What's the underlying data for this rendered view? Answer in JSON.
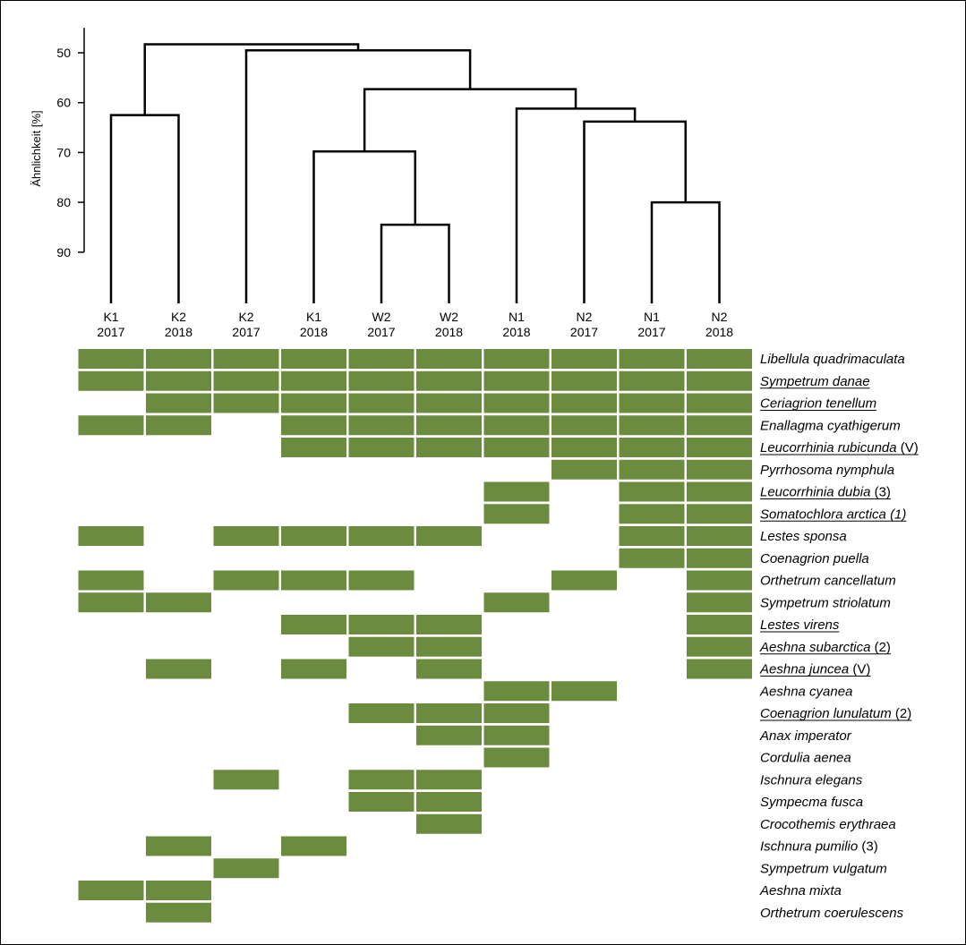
{
  "chart_data": [
    {
      "type": "dendrogram",
      "ylabel": "Ähnlichkeit [%]",
      "yticks": [
        50,
        60,
        70,
        80,
        90
      ],
      "ylim": [
        45,
        92
      ],
      "leaves": [
        {
          "site": "K1",
          "year": "2017"
        },
        {
          "site": "K2",
          "year": "2018"
        },
        {
          "site": "K2",
          "year": "2017"
        },
        {
          "site": "K1",
          "year": "2018"
        },
        {
          "site": "W2",
          "year": "2017"
        },
        {
          "site": "W2",
          "year": "2018"
        },
        {
          "site": "N1",
          "year": "2018"
        },
        {
          "site": "N2",
          "year": "2017"
        },
        {
          "site": "N1",
          "year": "2017"
        },
        {
          "site": "N2",
          "year": "2018"
        }
      ],
      "merges": [
        {
          "a": 0,
          "b": 1,
          "similarity": 62.5
        },
        {
          "a": 8,
          "b": 9,
          "similarity": 80
        },
        {
          "a": 4,
          "b": 5,
          "similarity": 84.5
        },
        {
          "a": 3,
          "b": 12,
          "similarity": 69.8
        },
        {
          "a": 7,
          "b": 11,
          "similarity": 63.8
        },
        {
          "a": 6,
          "b": 14,
          "similarity": 61.2
        },
        {
          "a": 13,
          "b": 15,
          "similarity": 57.3
        },
        {
          "a": 2,
          "b": 16,
          "similarity": 49.5
        },
        {
          "a": 10,
          "b": 17,
          "similarity": 48.3
        }
      ]
    },
    {
      "type": "heatmap",
      "columns": [
        "K1 2017",
        "K2 2018",
        "K2 2017",
        "K1 2018",
        "W2 2017",
        "W2 2018",
        "N1 2018",
        "N2 2017",
        "N1 2017",
        "N2 2018"
      ],
      "rows": [
        {
          "name": "Libellula quadrimaculata",
          "suffix": "",
          "underline": false,
          "presence": [
            1,
            1,
            1,
            1,
            1,
            1,
            1,
            1,
            1,
            1
          ]
        },
        {
          "name": "Sympetrum danae",
          "suffix": "",
          "underline": true,
          "presence": [
            1,
            1,
            1,
            1,
            1,
            1,
            1,
            1,
            1,
            1
          ]
        },
        {
          "name": "Ceriagrion tenellum",
          "suffix": "",
          "underline": true,
          "presence": [
            0,
            1,
            1,
            1,
            1,
            1,
            1,
            1,
            1,
            1
          ]
        },
        {
          "name": "Enallagma cyathigerum",
          "suffix": "",
          "underline": false,
          "presence": [
            1,
            1,
            0,
            1,
            1,
            1,
            1,
            1,
            1,
            1
          ]
        },
        {
          "name": "Leucorrhinia rubicunda",
          "suffix": " (V)",
          "underline": true,
          "presence": [
            0,
            0,
            0,
            1,
            1,
            1,
            1,
            1,
            1,
            1
          ]
        },
        {
          "name": "Pyrrhosoma nymphula",
          "suffix": "",
          "underline": false,
          "presence": [
            0,
            0,
            0,
            0,
            0,
            0,
            0,
            1,
            1,
            1
          ]
        },
        {
          "name": "Leucorrhinia dubia",
          "suffix": " (3)",
          "underline": true,
          "presence": [
            0,
            0,
            0,
            0,
            0,
            0,
            1,
            0,
            1,
            1
          ]
        },
        {
          "name": "Somatochlora arctica (1)",
          "suffix": "",
          "underline": true,
          "presence": [
            0,
            0,
            0,
            0,
            0,
            0,
            1,
            0,
            1,
            1
          ]
        },
        {
          "name": "Lestes sponsa",
          "suffix": "",
          "underline": false,
          "presence": [
            1,
            0,
            1,
            1,
            1,
            1,
            0,
            0,
            1,
            1
          ]
        },
        {
          "name": "Coenagrion puella",
          "suffix": "",
          "underline": false,
          "presence": [
            0,
            0,
            0,
            0,
            0,
            0,
            0,
            0,
            1,
            1
          ]
        },
        {
          "name": "Orthetrum cancellatum",
          "suffix": "",
          "underline": false,
          "presence": [
            1,
            0,
            1,
            1,
            1,
            0,
            0,
            1,
            0,
            1
          ]
        },
        {
          "name": "Sympetrum striolatum",
          "suffix": "",
          "underline": false,
          "presence": [
            1,
            1,
            0,
            0,
            0,
            0,
            1,
            0,
            0,
            1
          ]
        },
        {
          "name": "Lestes virens",
          "suffix": "",
          "underline": true,
          "presence": [
            0,
            0,
            0,
            1,
            1,
            1,
            0,
            0,
            0,
            1
          ]
        },
        {
          "name": "Aeshna subarctica",
          "suffix": " (2)",
          "underline": true,
          "presence": [
            0,
            0,
            0,
            0,
            1,
            1,
            0,
            0,
            0,
            1
          ]
        },
        {
          "name": "Aeshna juncea",
          "suffix": " (V)",
          "underline": true,
          "presence": [
            0,
            1,
            0,
            1,
            0,
            1,
            0,
            0,
            0,
            1
          ]
        },
        {
          "name": "Aeshna cyanea",
          "suffix": "",
          "underline": false,
          "presence": [
            0,
            0,
            0,
            0,
            0,
            0,
            1,
            1,
            0,
            0
          ]
        },
        {
          "name": "Coenagrion lunulatum",
          "suffix": " (2)",
          "underline": true,
          "presence": [
            0,
            0,
            0,
            0,
            1,
            1,
            1,
            0,
            0,
            0
          ]
        },
        {
          "name": "Anax imperator",
          "suffix": "",
          "underline": false,
          "presence": [
            0,
            0,
            0,
            0,
            0,
            1,
            1,
            0,
            0,
            0
          ]
        },
        {
          "name": "Cordulia aenea",
          "suffix": "",
          "underline": false,
          "presence": [
            0,
            0,
            0,
            0,
            0,
            0,
            1,
            0,
            0,
            0
          ]
        },
        {
          "name": "Ischnura elegans",
          "suffix": "",
          "underline": false,
          "presence": [
            0,
            0,
            1,
            0,
            1,
            1,
            0,
            0,
            0,
            0
          ]
        },
        {
          "name": "Sympecma fusca",
          "suffix": "",
          "underline": false,
          "presence": [
            0,
            0,
            0,
            0,
            1,
            1,
            0,
            0,
            0,
            0
          ]
        },
        {
          "name": "Crocothemis erythraea",
          "suffix": "",
          "underline": false,
          "presence": [
            0,
            0,
            0,
            0,
            0,
            1,
            0,
            0,
            0,
            0
          ]
        },
        {
          "name": "Ischnura pumilio",
          "suffix": " (3)",
          "underline": false,
          "presence": [
            0,
            1,
            0,
            1,
            0,
            0,
            0,
            0,
            0,
            0
          ]
        },
        {
          "name": "Sympetrum vulgatum",
          "suffix": "",
          "underline": false,
          "presence": [
            0,
            0,
            1,
            0,
            0,
            0,
            0,
            0,
            0,
            0
          ]
        },
        {
          "name": "Aeshna mixta",
          "suffix": "",
          "underline": false,
          "presence": [
            1,
            1,
            0,
            0,
            0,
            0,
            0,
            0,
            0,
            0
          ]
        },
        {
          "name": "Orthetrum coerulescens",
          "suffix": "",
          "underline": false,
          "presence": [
            0,
            1,
            0,
            0,
            0,
            0,
            0,
            0,
            0,
            0
          ]
        }
      ],
      "cell_color": "#6b8c3e"
    }
  ]
}
